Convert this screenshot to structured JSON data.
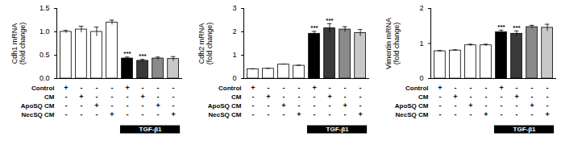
{
  "chart_data": [
    {
      "type": "bar",
      "y_label": "Cdh1 mRNA (fold change)",
      "categories": [
        null,
        null,
        null,
        null,
        null,
        null,
        null,
        null
      ],
      "values": [
        1.0,
        1.05,
        1.0,
        1.2,
        0.43,
        0.38,
        0.43,
        0.42
      ],
      "errors": [
        0.03,
        0.07,
        0.1,
        0.05,
        0.03,
        0.03,
        0.03,
        0.05
      ],
      "colors": [
        "#ffffff",
        "#ffffff",
        "#ffffff",
        "#ffffff",
        "#000000",
        "#3a3a3a",
        "#8a8a8a",
        "#c8c8c8"
      ],
      "ylim": [
        0,
        1.5
      ],
      "yticks": [
        {
          "value": 0,
          "label": "0.0"
        },
        {
          "value": 0.5,
          "label": "0.5"
        },
        {
          "value": 1,
          "label": "1.0"
        },
        {
          "value": 1.5,
          "label": "1.5"
        }
      ],
      "annotations": [
        {
          "index": 4,
          "text": "***"
        },
        {
          "index": 5,
          "text": "***"
        }
      ],
      "conditions": [
        {
          "name": "Control",
          "signs": [
            "+",
            "-",
            "-",
            "-",
            "+",
            "-",
            "-",
            "-"
          ]
        },
        {
          "name": "CM",
          "signs": [
            "-",
            "+",
            "-",
            "-",
            "-",
            "+",
            "-",
            "-"
          ]
        },
        {
          "name": "ApoSQ CM",
          "signs": [
            "-",
            "-",
            "+",
            "-",
            "-",
            "-",
            "+",
            "-"
          ]
        },
        {
          "name": "NecSQ CM",
          "signs": [
            "-",
            "-",
            "-",
            "+",
            "-",
            "-",
            "-",
            "+"
          ]
        }
      ],
      "bracket": {
        "text": "TGF-β1",
        "from": 4,
        "to": 7
      }
    },
    {
      "type": "bar",
      "y_label": "Cdh2 mRNA (fold change)",
      "categories": [
        null,
        null,
        null,
        null,
        null,
        null,
        null,
        null
      ],
      "values": [
        0.4,
        0.42,
        0.6,
        0.55,
        1.92,
        2.15,
        2.1,
        1.95
      ],
      "errors": [
        0.02,
        0.02,
        0.02,
        0.02,
        0.1,
        0.2,
        0.12,
        0.15
      ],
      "colors": [
        "#ffffff",
        "#ffffff",
        "#ffffff",
        "#ffffff",
        "#000000",
        "#3a3a3a",
        "#8a8a8a",
        "#c8c8c8"
      ],
      "ylim": [
        0,
        3
      ],
      "yticks": [
        0,
        1,
        2,
        3
      ],
      "annotations": [
        {
          "index": 4,
          "text": "***"
        },
        {
          "index": 5,
          "text": "***"
        }
      ],
      "conditions": [
        {
          "name": "Control",
          "signs": [
            "+",
            "-",
            "-",
            "-",
            "+",
            "-",
            "-",
            "-"
          ]
        },
        {
          "name": "CM",
          "signs": [
            "-",
            "+",
            "-",
            "-",
            "-",
            "+",
            "-",
            "-"
          ]
        },
        {
          "name": "ApoSQ CM",
          "signs": [
            "-",
            "-",
            "+",
            "-",
            "-",
            "-",
            "+",
            "-"
          ]
        },
        {
          "name": "NecSQ CM",
          "signs": [
            "-",
            "-",
            "-",
            "+",
            "-",
            "-",
            "-",
            "+"
          ]
        }
      ],
      "bracket": {
        "text": "TGF-β1",
        "from": 4,
        "to": 7
      }
    },
    {
      "type": "bar",
      "y_label": "Vimentin mRNA (fold change)",
      "categories": [
        null,
        null,
        null,
        null,
        null,
        null,
        null,
        null
      ],
      "values": [
        0.78,
        0.8,
        0.95,
        0.95,
        1.32,
        1.28,
        1.47,
        1.45
      ],
      "errors": [
        0.02,
        0.02,
        0.03,
        0.03,
        0.06,
        0.08,
        0.05,
        0.1
      ],
      "colors": [
        "#ffffff",
        "#ffffff",
        "#ffffff",
        "#ffffff",
        "#000000",
        "#3a3a3a",
        "#8a8a8a",
        "#c8c8c8"
      ],
      "ylim": [
        0,
        2
      ],
      "yticks": [
        0,
        1,
        2
      ],
      "annotations": [
        {
          "index": 4,
          "text": "***"
        },
        {
          "index": 5,
          "text": "***"
        }
      ],
      "conditions": [
        {
          "name": "Control",
          "signs": [
            "+",
            "-",
            "-",
            "-",
            "+",
            "-",
            "-",
            "-"
          ]
        },
        {
          "name": "CM",
          "signs": [
            "-",
            "+",
            "-",
            "-",
            "-",
            "+",
            "-",
            "-"
          ]
        },
        {
          "name": "ApoSQ CM",
          "signs": [
            "-",
            "-",
            "+",
            "-",
            "-",
            "-",
            "+",
            "-"
          ]
        },
        {
          "name": "NecSQ CM",
          "signs": [
            "-",
            "-",
            "-",
            "+",
            "-",
            "-",
            "-",
            "+"
          ]
        }
      ],
      "bracket": {
        "text": "TGF-β1",
        "from": 4,
        "to": 7
      }
    }
  ]
}
